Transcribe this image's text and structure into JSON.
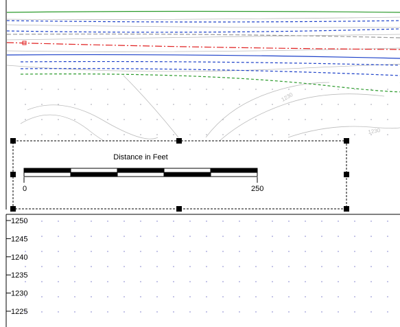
{
  "plan_view": {
    "contour_labels": [
      "1230",
      "1230"
    ]
  },
  "scale_bar": {
    "title": "Distance in Feet",
    "labels": [
      "0",
      "250"
    ]
  },
  "profile_view": {
    "elevation_labels": [
      "1250",
      "1245",
      "1240",
      "1235",
      "1230",
      "1225"
    ]
  }
}
